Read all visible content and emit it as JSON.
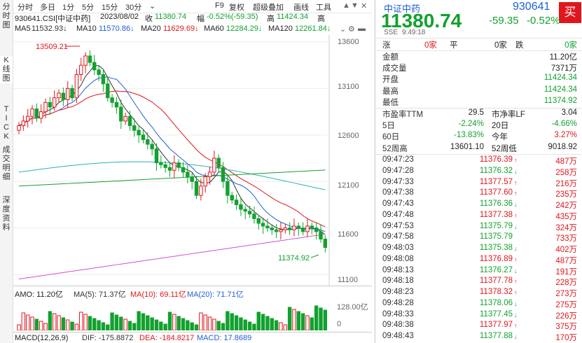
{
  "left_tabs": [
    "分时图",
    "K线图",
    "TICK成交明细",
    "深度资料"
  ],
  "toolbar": {
    "periods": [
      "分时",
      "多日",
      "1分",
      "5分",
      "15分",
      "30分"
    ],
    "dropdown": "⌄",
    "items": [
      "F9",
      "复权",
      "超级叠加",
      "画线",
      "工具"
    ],
    "right_icons": [
      "▲",
      "▼",
      "✕"
    ]
  },
  "info": {
    "code": "930641.CSI[中证中药]",
    "date": "2023/08/02",
    "close_label": "收",
    "close": "11380.74",
    "pct_label": "幅",
    "pct": "-0.52%(-59.35)",
    "high_label": "高",
    "high": "11424.34",
    "trail": "高"
  },
  "ma": [
    {
      "label": "MA5",
      "value": "11532.93↓",
      "color": "#333"
    },
    {
      "label": "MA10",
      "value": "11570.86↓",
      "color": "#1f5fd6"
    },
    {
      "label": "MA20",
      "value": "11629.69↓",
      "color": "#e0161c"
    },
    {
      "label": "MA60",
      "value": "12284.29↓",
      "color": "#12a12e"
    },
    {
      "label": "MA120",
      "value": "12261.84↓",
      "color": "#12a12e"
    }
  ],
  "chart_data": {
    "type": "candlestick",
    "y_ticks": [
      "13600",
      "13100",
      "12600",
      "12100",
      "11600",
      "11100"
    ],
    "annotations": {
      "high_label": "13509.21",
      "low_label": "11374.92"
    },
    "amo_line": {
      "label": "AMO: 11.20亿",
      "ma5": "MA(5): 71.37亿",
      "ma10": "MA(10): 69.11亿",
      "ma20": "MA(20): 71.71亿"
    },
    "volume_ticks": [
      "128.00亿",
      "0"
    ],
    "macd_line": {
      "label": "MACD(12,26,9)",
      "dif": "DIF: -175.8872",
      "dea": "DEA: -184.8217",
      "macd": "MACD: 17.8689"
    }
  },
  "quote": {
    "name": "中证中药",
    "code": "930641",
    "price": "11380.74",
    "change": "-59.35",
    "pct": "-0.52%",
    "buy": "买",
    "exchange": "SSE",
    "time": "9:49:18",
    "up_label": "涨",
    "up_val": "0家",
    "flat_label": "平",
    "flat_val": "0家",
    "down_label": "跌",
    "down_val": "0家"
  },
  "stats": [
    {
      "l": "金额",
      "r": "11.20亿",
      "c": "#222"
    },
    {
      "l": "成交量",
      "r": "7371万",
      "c": "#222"
    },
    {
      "l": "开盘",
      "r": "11424.34",
      "c": "#12a12e"
    },
    {
      "l": "最高",
      "r": "11424.34",
      "c": "#12a12e"
    },
    {
      "l": "最低",
      "r": "11374.92",
      "c": "#12a12e"
    }
  ],
  "stats2": [
    {
      "l1": "市盈率TTM",
      "r1": "29.5",
      "c1": "#222",
      "l2": "市净率LF",
      "r2": "3.04",
      "c2": "#222"
    },
    {
      "l1": "5日",
      "r1": "-2.24%",
      "c1": "#12a12e",
      "l2": "20日",
      "r2": "-4.66%",
      "c2": "#12a12e"
    },
    {
      "l1": "60日",
      "r1": "-13.83%",
      "c1": "#12a12e",
      "l2": "今年",
      "r2": "3.27%",
      "c2": "#e0161c"
    },
    {
      "l1": "52周高",
      "r1": "13601.10",
      "c1": "#222",
      "l2": "52周低",
      "r2": "9018.92",
      "c2": "#222"
    }
  ],
  "ticks": [
    {
      "t": "09:47:23",
      "p": "11376.39",
      "a": "↑",
      "ac": "#e0161c",
      "v": "487万"
    },
    {
      "t": "09:47:28",
      "p": "11376.32",
      "a": "↓",
      "ac": "#12a12e",
      "v": "258万"
    },
    {
      "t": "09:47:33",
      "p": "11377.57",
      "a": "↑",
      "ac": "#e0161c",
      "v": "216万"
    },
    {
      "t": "09:47:38",
      "p": "11377.60",
      "a": "↑",
      "ac": "#e0161c",
      "v": "235万"
    },
    {
      "t": "09:47:43",
      "p": "11376.36",
      "a": "↓",
      "ac": "#12a12e",
      "v": "242万"
    },
    {
      "t": "09:47:48",
      "p": "11377.38",
      "a": "↑",
      "ac": "#e0161c",
      "v": "435万"
    },
    {
      "t": "09:47:53",
      "p": "11375.79",
      "a": "↓",
      "ac": "#12a12e",
      "v": "324万"
    },
    {
      "t": "09:47:58",
      "p": "11375.79",
      "a": "",
      "ac": "#12a12e",
      "v": "733万"
    },
    {
      "t": "09:48:03",
      "p": "11375.38",
      "a": "↓",
      "ac": "#12a12e",
      "v": "402万"
    },
    {
      "t": "09:48:08",
      "p": "11376.89",
      "a": "↑",
      "ac": "#e0161c",
      "v": "487万"
    },
    {
      "t": "09:48:13",
      "p": "11376.27",
      "a": "↓",
      "ac": "#12a12e",
      "v": "191万"
    },
    {
      "t": "09:48:18",
      "p": "11377.78",
      "a": "↑",
      "ac": "#e0161c",
      "v": "228万"
    },
    {
      "t": "09:48:23",
      "p": "11378.32",
      "a": "↑",
      "ac": "#e0161c",
      "v": "273万"
    },
    {
      "t": "09:48:28",
      "p": "11378.06",
      "a": "↓",
      "ac": "#12a12e",
      "v": "275万"
    },
    {
      "t": "09:48:33",
      "p": "11377.45",
      "a": "↓",
      "ac": "#12a12e",
      "v": "226万"
    },
    {
      "t": "09:48:38",
      "p": "11377.97",
      "a": "↑",
      "ac": "#e0161c",
      "v": "375万"
    },
    {
      "t": "09:48:43",
      "p": "11377.88",
      "a": "↓",
      "ac": "#12a12e",
      "v": "170万"
    }
  ]
}
